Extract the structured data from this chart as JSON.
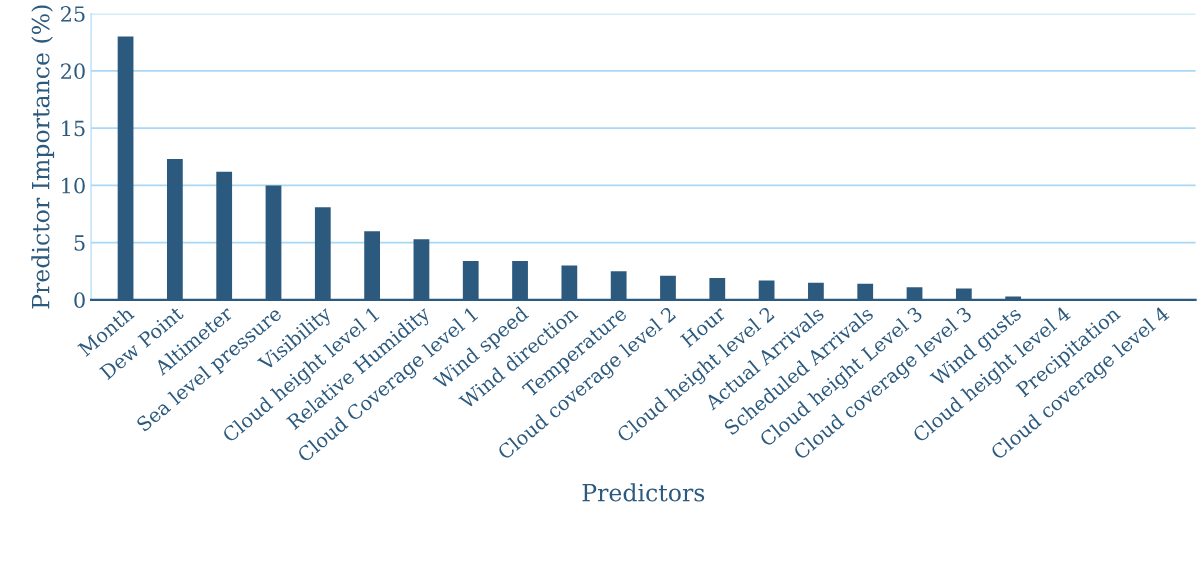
{
  "chart_data": {
    "type": "bar",
    "xlabel": "Predictors",
    "ylabel": "Predictor Importance (%)",
    "categories": [
      "Month",
      "Dew Point",
      "Altimeter",
      "Sea level pressure",
      "Visibility",
      "Cloud height level 1",
      "Relative Humidity",
      "Cloud Coverage level 1",
      "Wind speed",
      "Wind direction",
      "Temperature",
      "Cloud coverage level 2",
      "Hour",
      "Cloud height level 2",
      "Actual Arrivals",
      "Scheduled Arrivals",
      "Cloud height Level 3",
      "Cloud coverage level 3",
      "Wind gusts",
      "Cloud height level 4",
      "Precipitation",
      "Cloud coverage level 4"
    ],
    "values": [
      23.0,
      12.3,
      11.2,
      10.0,
      8.1,
      6.0,
      5.3,
      3.4,
      3.4,
      3.0,
      2.5,
      2.1,
      1.9,
      1.7,
      1.5,
      1.4,
      1.1,
      1.0,
      0.3,
      0.05,
      0.05,
      0.05
    ],
    "color": "#2c5a7e",
    "ylim": [
      0,
      25
    ],
    "yticks": [
      0,
      5,
      10,
      15,
      20,
      25
    ],
    "grid": "y"
  }
}
